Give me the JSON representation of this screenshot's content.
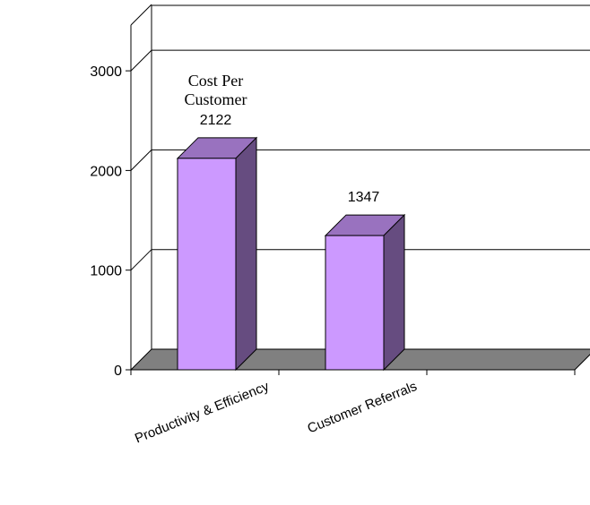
{
  "chart_data": {
    "type": "bar",
    "style": "3d-column",
    "categories": [
      "Productivity & Efficiency",
      "Customer Referrals"
    ],
    "empty_slots_after": 1,
    "values": [
      2122,
      1347
    ],
    "annotation_lines": [
      "Cost Per",
      "Customer"
    ],
    "ylim": [
      0,
      3000
    ],
    "yticks": [
      0,
      1000,
      2000,
      3000
    ],
    "grid": true,
    "legend": "none",
    "colors": {
      "bar_front": "#cc99ff",
      "bar_side": "#664c80",
      "bar_top": "#9972bf",
      "floor": "#808080",
      "grid": "#000000"
    }
  }
}
